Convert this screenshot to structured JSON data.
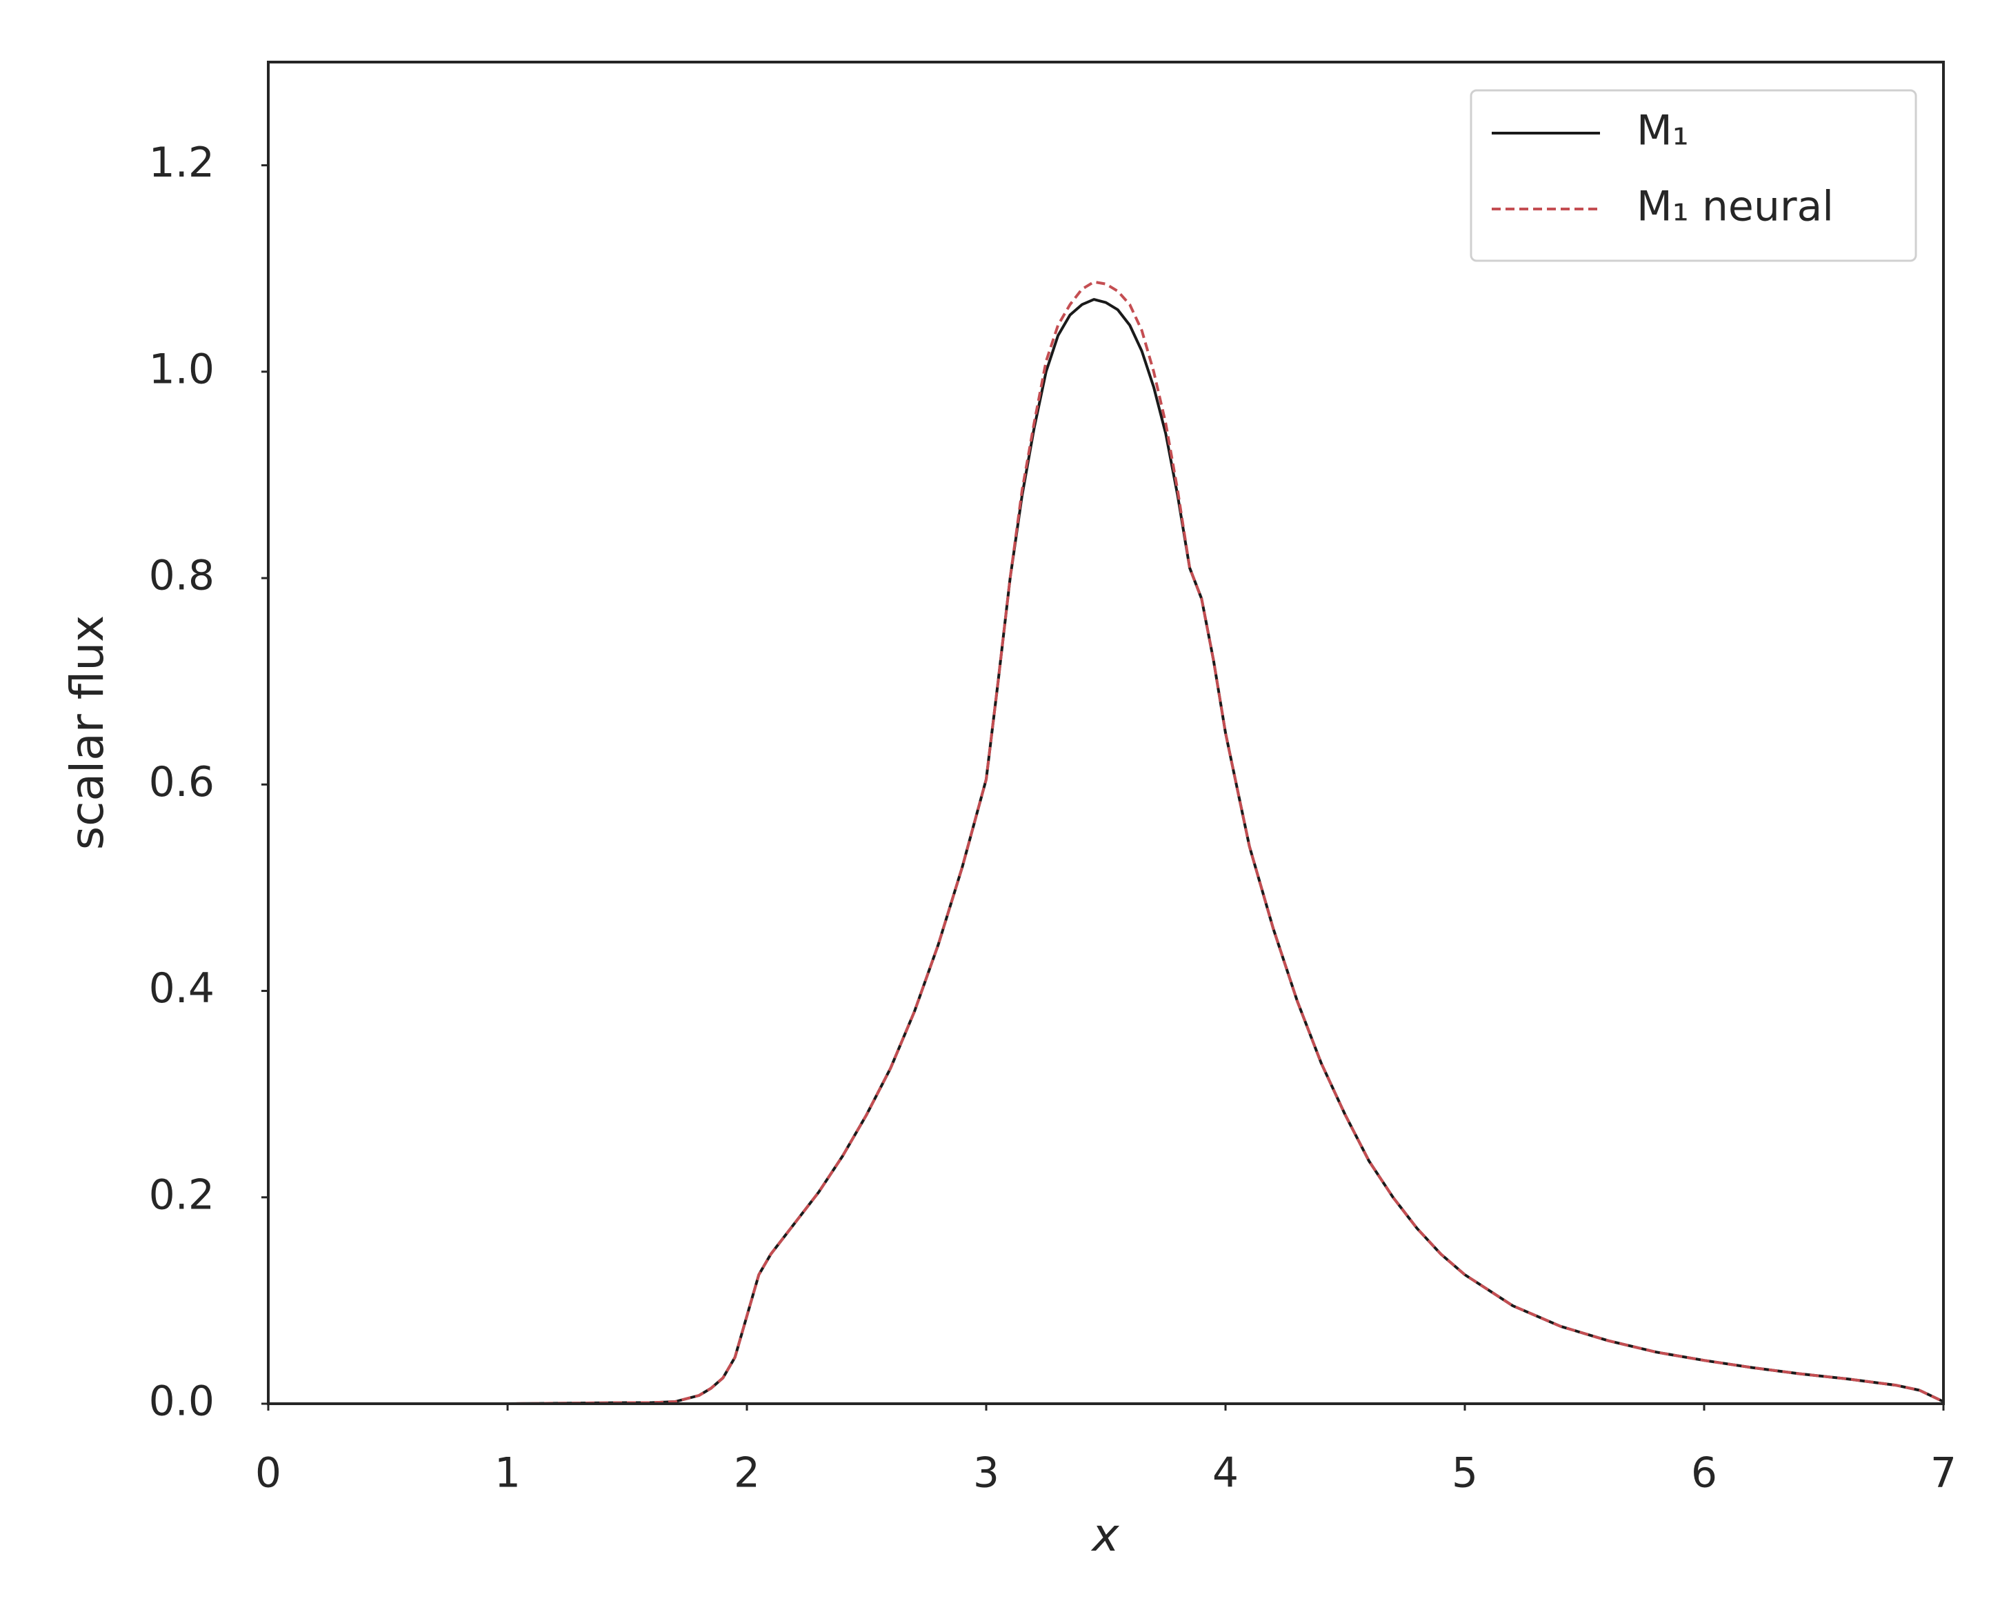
{
  "chart_data": {
    "type": "line",
    "xlabel": "x",
    "ylabel": "scalar flux",
    "x": [
      0,
      0.5,
      1,
      1.5,
      1.6,
      1.7,
      1.8,
      1.85,
      1.9,
      1.95,
      2.0,
      2.05,
      2.1,
      2.2,
      2.3,
      2.4,
      2.5,
      2.6,
      2.7,
      2.8,
      2.9,
      3.0,
      3.05,
      3.1,
      3.15,
      3.2,
      3.25,
      3.3,
      3.35,
      3.4,
      3.45,
      3.5,
      3.55,
      3.6,
      3.65,
      3.7,
      3.75,
      3.8,
      3.85,
      3.9,
      3.95,
      4.0,
      4.05,
      4.1,
      4.2,
      4.3,
      4.4,
      4.5,
      4.6,
      4.7,
      4.8,
      4.9,
      5.0,
      5.2,
      5.4,
      5.6,
      5.8,
      6.0,
      6.2,
      6.4,
      6.6,
      6.8,
      6.9,
      7.0
    ],
    "series": [
      {
        "name": "M₁",
        "color": "#1a1a1a",
        "dash": false,
        "values": [
          0,
          0,
          0,
          0.001,
          0.001,
          0.002,
          0.008,
          0.015,
          0.025,
          0.045,
          0.085,
          0.125,
          0.145,
          0.175,
          0.205,
          0.24,
          0.28,
          0.325,
          0.38,
          0.445,
          0.52,
          0.605,
          0.7,
          0.8,
          0.88,
          0.945,
          1.0,
          1.035,
          1.055,
          1.065,
          1.07,
          1.067,
          1.06,
          1.045,
          1.02,
          0.985,
          0.94,
          0.88,
          0.81,
          0.78,
          0.72,
          0.65,
          0.595,
          0.54,
          0.46,
          0.39,
          0.33,
          0.28,
          0.235,
          0.2,
          0.17,
          0.145,
          0.125,
          0.095,
          0.075,
          0.061,
          0.05,
          0.042,
          0.035,
          0.029,
          0.024,
          0.018,
          0.013,
          0.002
        ]
      },
      {
        "name": "M₁ neural",
        "color": "#c44e52",
        "dash": true,
        "values": [
          0,
          0,
          0,
          0.001,
          0.001,
          0.002,
          0.008,
          0.015,
          0.025,
          0.045,
          0.085,
          0.125,
          0.145,
          0.175,
          0.205,
          0.24,
          0.28,
          0.325,
          0.38,
          0.445,
          0.52,
          0.605,
          0.7,
          0.8,
          0.885,
          0.95,
          1.01,
          1.045,
          1.065,
          1.08,
          1.087,
          1.085,
          1.078,
          1.065,
          1.04,
          1.0,
          0.95,
          0.885,
          0.81,
          0.78,
          0.72,
          0.65,
          0.595,
          0.54,
          0.46,
          0.39,
          0.33,
          0.28,
          0.235,
          0.2,
          0.17,
          0.145,
          0.125,
          0.095,
          0.075,
          0.061,
          0.05,
          0.042,
          0.035,
          0.029,
          0.024,
          0.018,
          0.013,
          0.002
        ]
      }
    ],
    "xlim": [
      0,
      7
    ],
    "ylim": [
      0,
      1.3
    ],
    "xticks": [
      0,
      1,
      2,
      3,
      4,
      5,
      6,
      7
    ],
    "yticks": [
      {
        "value": 0,
        "label": "0.0"
      },
      0.2,
      0.4,
      0.6,
      0.8,
      {
        "value": 1,
        "label": "1.0"
      },
      1.2
    ],
    "grid": false,
    "legend": "upper right"
  }
}
